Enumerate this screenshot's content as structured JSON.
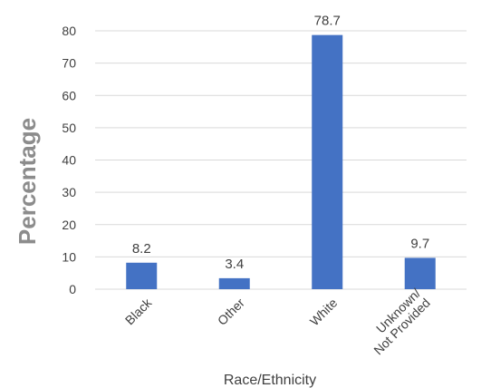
{
  "chart_data": {
    "type": "bar",
    "categories": [
      "Black",
      "Other",
      "White",
      "Unknown/ Not Provided"
    ],
    "category_lines": [
      [
        "Black"
      ],
      [
        "Other"
      ],
      [
        "White"
      ],
      [
        "Unknown/",
        "Not Provided"
      ]
    ],
    "values": [
      8.2,
      3.4,
      78.7,
      9.7
    ],
    "data_labels": [
      "8.2",
      "3.4",
      "78.7",
      "9.7"
    ],
    "xlabel": "Race/Ethnicity",
    "ylabel": "Percentage",
    "ylim": [
      0,
      80
    ],
    "yticks": [
      0,
      10,
      20,
      30,
      40,
      50,
      60,
      70,
      80
    ],
    "grid": true,
    "legend": "none",
    "colors": {
      "bar": "#4472c4",
      "grid": "#d9d9d9",
      "text": "#404040",
      "ylabel": "#8c8c8c"
    }
  }
}
